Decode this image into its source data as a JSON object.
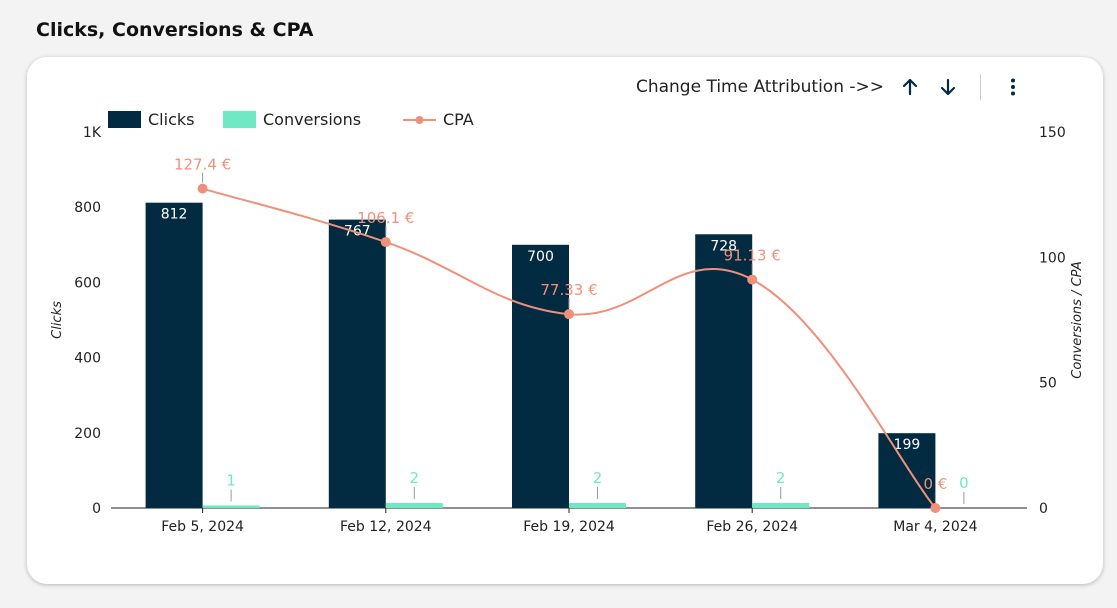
{
  "page": {
    "title": "Clicks, Conversions & CPA"
  },
  "toolbar": {
    "attribution_label": "Change Time Attribution ->>"
  },
  "icons": {
    "up": "arrow-up-icon",
    "down": "arrow-down-icon",
    "menu": "kebab-menu-icon"
  },
  "colors": {
    "clicks": "#022b41",
    "conversions": "#6fe8c3",
    "cpa": "#f0907a"
  },
  "chart_data": {
    "type": "bar",
    "categories": [
      "Feb 5, 2024",
      "Feb 12, 2024",
      "Feb 19, 2024",
      "Feb 26, 2024",
      "Mar 4, 2024"
    ],
    "series": [
      {
        "name": "Clicks",
        "type": "bar",
        "axis": "left",
        "values": [
          812,
          767,
          700,
          728,
          199
        ],
        "labels": [
          "812",
          "767",
          "700",
          "728",
          "199"
        ]
      },
      {
        "name": "Conversions",
        "type": "bar",
        "axis": "right",
        "values": [
          1,
          2,
          2,
          2,
          0
        ],
        "labels": [
          "1",
          "2",
          "2",
          "2",
          "0"
        ]
      },
      {
        "name": "CPA",
        "type": "line",
        "axis": "right",
        "values": [
          127.4,
          106.1,
          77.33,
          91.13,
          0
        ],
        "labels": [
          "127.4 €",
          "106.1 €",
          "77.33 €",
          "91.13 €",
          "0 €"
        ]
      }
    ],
    "y_left": {
      "label": "Clicks",
      "ylim": [
        0,
        1000
      ],
      "ticks": [
        "0",
        "200",
        "400",
        "600",
        "800",
        "1K"
      ]
    },
    "y_right": {
      "label": "Conversions / CPA",
      "ylim": [
        0,
        150
      ],
      "ticks": [
        "0",
        "50",
        "100",
        "150"
      ]
    },
    "grid": false,
    "legend": "top-left"
  }
}
